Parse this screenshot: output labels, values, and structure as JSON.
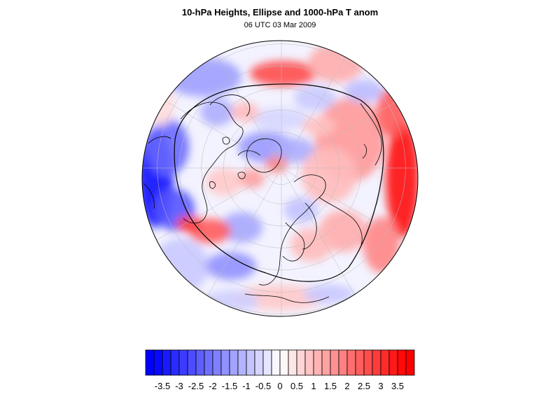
{
  "header": {
    "title": "10-hPa Heights, Ellipse and 1000-hPa T anom",
    "subtitle": "06 UTC 03 Mar 2009"
  },
  "colorbar": {
    "tick_labels": [
      "-3.5",
      "-3",
      "-2.5",
      "-2",
      "-1.5",
      "-1",
      "-0.5",
      "0",
      "0.5",
      "1",
      "1.5",
      "2",
      "2.5",
      "3",
      "3.5"
    ],
    "tick_values": [
      -3.5,
      -3,
      -2.5,
      -2,
      -1.5,
      -1,
      -0.5,
      0,
      0.5,
      1,
      1.5,
      2,
      2.5,
      3,
      3.5
    ],
    "min": -4,
    "max": 4,
    "step": 0.25,
    "colors": {
      "cold_end": "#0000ff",
      "neutral": "#ffffff",
      "warm_end": "#ff0000"
    }
  },
  "map": {
    "projection": "orthographic-north-polar",
    "field": "1000-hPa T anom",
    "contour": "10-hPa height ellipse",
    "colors": {
      "coastline": "#000000",
      "graticule": "#bbbbbb",
      "ellipse": "#000000"
    }
  }
}
